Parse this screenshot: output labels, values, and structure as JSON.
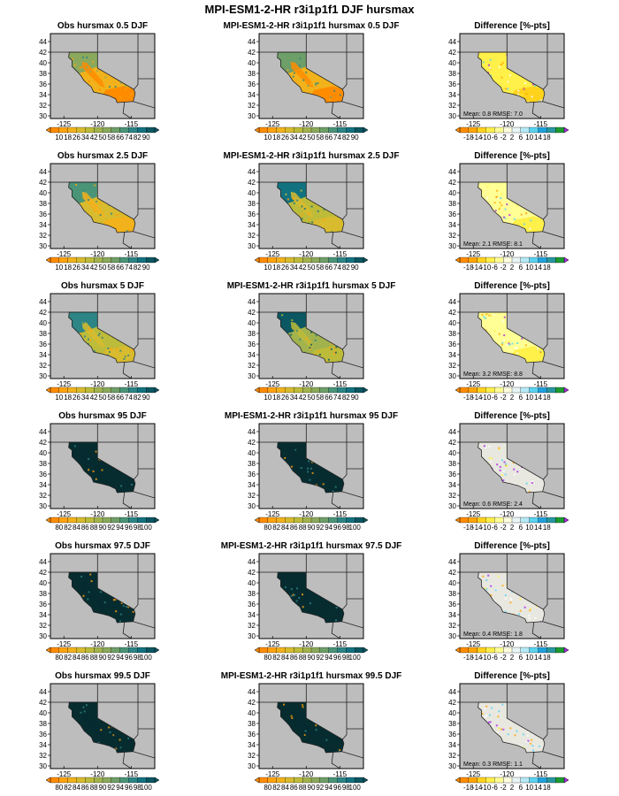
{
  "figure": {
    "title": "MPI-ESM1-2-HR r3i1p1f1 DJF hursmax",
    "lat_ticks": [
      "44",
      "42",
      "40",
      "38",
      "36",
      "34",
      "32",
      "30"
    ],
    "lon_ticks": [
      "-125",
      "-120",
      "-115"
    ]
  },
  "colorbars": {
    "low": {
      "labels": [
        "10",
        "18",
        "26",
        "34",
        "42",
        "50",
        "58",
        "66",
        "74",
        "82",
        "90"
      ],
      "colors": [
        "#ff8c00",
        "#ffa30f",
        "#f2b21c",
        "#d8bb2e",
        "#bdbb3a",
        "#a2b34e",
        "#8aa95c",
        "#6e9f68",
        "#4a9478",
        "#2d8585",
        "#137280",
        "#0b5762"
      ]
    },
    "high": {
      "labels": [
        "80",
        "82",
        "84",
        "86",
        "88",
        "90",
        "92",
        "94",
        "96",
        "98",
        "100"
      ],
      "colors": [
        "#ff8c00",
        "#ffa30f",
        "#f2b21c",
        "#d8bb2e",
        "#bdbb3a",
        "#a2b34e",
        "#8aa95c",
        "#6e9f68",
        "#4a9478",
        "#2d8585",
        "#137280",
        "#0b5762"
      ]
    },
    "diff": {
      "labels": [
        "-18",
        "-14",
        "-10",
        "-6",
        "-2",
        "2",
        "6",
        "10",
        "14",
        "18"
      ],
      "colors": [
        "#ff8c00",
        "#ffa500",
        "#ffd21c",
        "#fff04a",
        "#ffff96",
        "#ffffe0",
        "#e8f4f6",
        "#b4eaf6",
        "#5ad2f0",
        "#1ea0dc",
        "#2896a0",
        "#1e9b32"
      ],
      "under": "#ff8c00",
      "over": "#ab29e6"
    }
  },
  "rows": [
    {
      "obs": {
        "title": "Obs hursmax 0.5 DJF",
        "fill": "#f2b21c",
        "fill2": "#ff8c00",
        "north": "#8aa95c"
      },
      "model": {
        "title": "MPI-ESM1-2-HR r3i1p1f1 hursmax 0.5 DJF",
        "fill": "#f2b21c",
        "fill2": "#ff8c00",
        "north": "#6e9f68"
      },
      "diff": {
        "title": "Difference [%-pts]",
        "mean": "0.8",
        "rmse": "7.0",
        "fill": "#fff04a",
        "fill2": "#ffd21c"
      },
      "cbar": "low"
    },
    {
      "obs": {
        "title": "Obs hursmax 2.5 DJF",
        "fill": "#d8bb2e",
        "fill2": "#f2b21c",
        "north": "#4a9478"
      },
      "model": {
        "title": "MPI-ESM1-2-HR r3i1p1f1 hursmax 2.5 DJF",
        "fill": "#bdbb3a",
        "fill2": "#d8bb2e",
        "north": "#137280"
      },
      "diff": {
        "title": "Difference [%-pts]",
        "mean": "2.1",
        "rmse": "8.1",
        "fill": "#ffff96",
        "fill2": "#fff04a"
      },
      "cbar": "low"
    },
    {
      "obs": {
        "title": "Obs hursmax 5 DJF",
        "fill": "#bdbb3a",
        "fill2": "#d8bb2e",
        "north": "#2d8585"
      },
      "model": {
        "title": "MPI-ESM1-2-HR r3i1p1f1 hursmax 5 DJF",
        "fill": "#a2b34e",
        "fill2": "#bdbb3a",
        "north": "#0b5762"
      },
      "diff": {
        "title": "Difference [%-pts]",
        "mean": "3.2",
        "rmse": "8.8",
        "fill": "#ffff96",
        "fill2": "#fff04a"
      },
      "cbar": "low"
    },
    {
      "obs": {
        "title": "Obs hursmax 95 DJF",
        "fill": "#062c30",
        "fill2": "#062c30",
        "north": "#062c30"
      },
      "model": {
        "title": "MPI-ESM1-2-HR r3i1p1f1 hursmax 95 DJF",
        "fill": "#062c30",
        "fill2": "#062c30",
        "north": "#062c30"
      },
      "diff": {
        "title": "Difference [%-pts]",
        "mean": "0.6",
        "rmse": "2.4",
        "fill": "#e8e8e0",
        "fill2": "#e8e8e0"
      },
      "cbar": "high"
    },
    {
      "obs": {
        "title": "Obs hursmax 97.5 DJF",
        "fill": "#062c30",
        "fill2": "#062c30",
        "north": "#062c30"
      },
      "model": {
        "title": "MPI-ESM1-2-HR r3i1p1f1 hursmax 97.5 DJF",
        "fill": "#062c30",
        "fill2": "#062c30",
        "north": "#062c30"
      },
      "diff": {
        "title": "Difference [%-pts]",
        "mean": "0.4",
        "rmse": "1.8",
        "fill": "#e8e8e0",
        "fill2": "#e8e8e0"
      },
      "cbar": "high"
    },
    {
      "obs": {
        "title": "Obs hursmax 99.5 DJF",
        "fill": "#062c30",
        "fill2": "#062c30",
        "north": "#062c30"
      },
      "model": {
        "title": "MPI-ESM1-2-HR r3i1p1f1 hursmax 99.5 DJF",
        "fill": "#062c30",
        "fill2": "#062c30",
        "north": "#062c30"
      },
      "diff": {
        "title": "Difference [%-pts]",
        "mean": "0.3",
        "rmse": "1.1",
        "fill": "#e8e8e0",
        "fill2": "#e8e8e0"
      },
      "cbar": "high"
    }
  ],
  "labels": {
    "mean_prefix": "Mean: ",
    "rmse_prefix": "RMSE: "
  }
}
